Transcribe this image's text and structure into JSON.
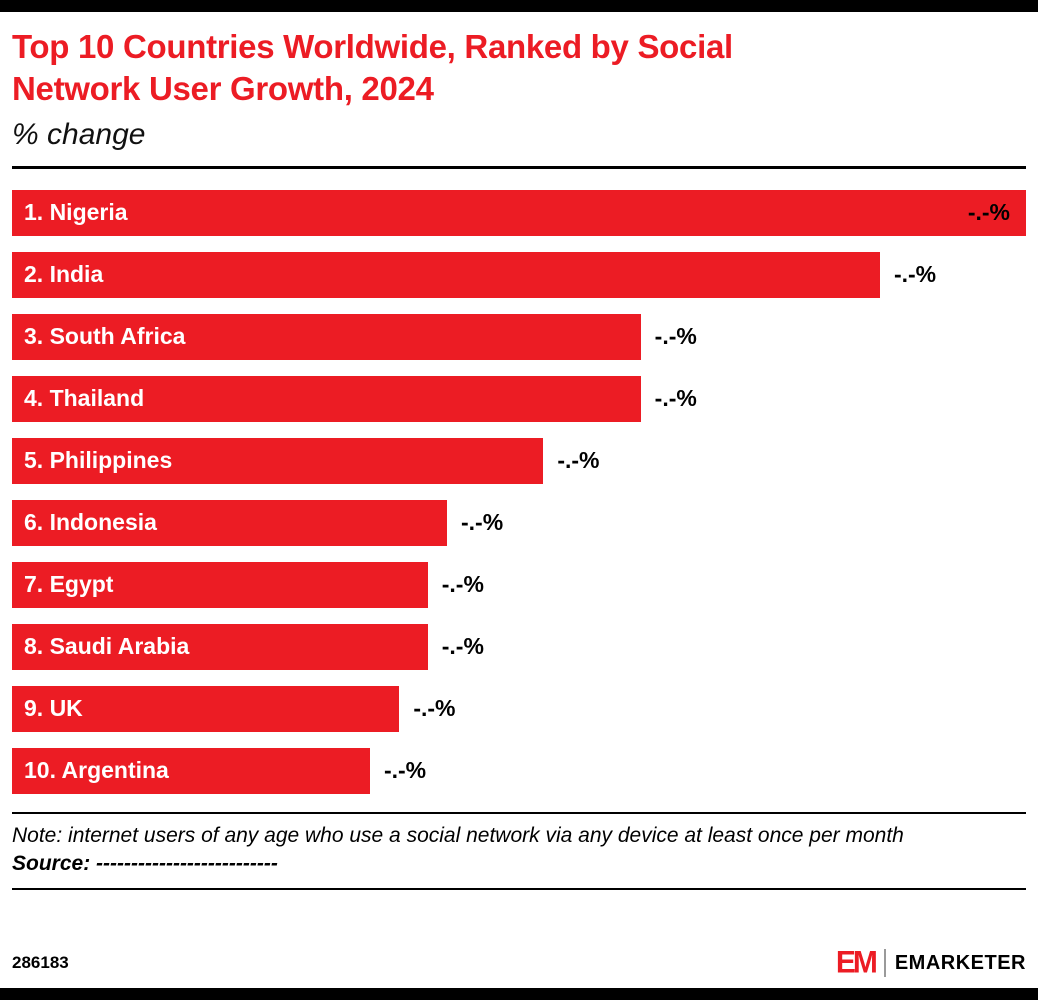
{
  "colors": {
    "accent_red": "#ec1c24",
    "bar_color": "#ec1c24",
    "text_black": "#000000"
  },
  "header": {
    "title_lines": [
      "Top 10 Countries Worldwide, Ranked by Social",
      "Network User Growth, 2024"
    ],
    "subtitle": "% change"
  },
  "chart_data": {
    "type": "bar",
    "orientation": "horizontal",
    "title": "Top 10 Countries Worldwide, Ranked by Social Network User Growth, 2024",
    "ylabel": "",
    "xlabel": "% change",
    "values_redacted": true,
    "categories": [
      "1. Nigeria",
      "2. India",
      "3. South Africa",
      "4. Thailand",
      "5. Philippines",
      "6. Indonesia",
      "7. Egypt",
      "8. Saudi Arabia",
      "9. UK",
      "10. Argentina"
    ],
    "rows": [
      {
        "rank": 1,
        "country": "Nigeria",
        "label": "1. Nigeria",
        "value": null,
        "value_label": "-.-%",
        "width_pct": 100
      },
      {
        "rank": 2,
        "country": "India",
        "label": "2. India",
        "value": null,
        "value_label": "-.-%",
        "width_pct": 85.6
      },
      {
        "rank": 3,
        "country": "South Africa",
        "label": "3. South Africa",
        "value": null,
        "value_label": "-.-%",
        "width_pct": 62
      },
      {
        "rank": 4,
        "country": "Thailand",
        "label": "4. Thailand",
        "value": null,
        "value_label": "-.-%",
        "width_pct": 62
      },
      {
        "rank": 5,
        "country": "Philippines",
        "label": "5. Philippines",
        "value": null,
        "value_label": "-.-%",
        "width_pct": 52.4
      },
      {
        "rank": 6,
        "country": "Indonesia",
        "label": "6. Indonesia",
        "value": null,
        "value_label": "-.-%",
        "width_pct": 42.9
      },
      {
        "rank": 7,
        "country": "Egypt",
        "label": "7. Egypt",
        "value": null,
        "value_label": "-.-%",
        "width_pct": 41
      },
      {
        "rank": 8,
        "country": "Saudi Arabia",
        "label": "8. Saudi Arabia",
        "value": null,
        "value_label": "-.-%",
        "width_pct": 41
      },
      {
        "rank": 9,
        "country": "UK",
        "label": "9. UK",
        "value": null,
        "value_label": "-.-%",
        "width_pct": 38.2
      },
      {
        "rank": 10,
        "country": "Argentina",
        "label": "10. Argentina",
        "value": null,
        "value_label": "-.-%",
        "width_pct": 35.3
      }
    ],
    "legend": null,
    "grid": false
  },
  "footnotes": {
    "note": "Note: internet users of any age who use a social network via any device at least once per month",
    "source": "Source: --------------------------"
  },
  "footer": {
    "chart_id": "286183",
    "logo_monogram": "EM",
    "logo_text": "EMARKETER"
  }
}
